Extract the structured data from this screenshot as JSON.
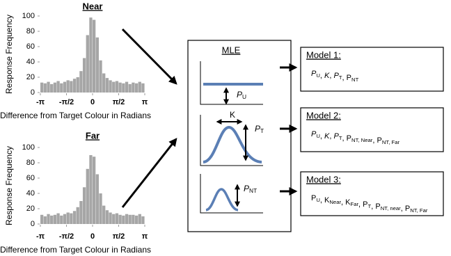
{
  "histograms": [
    {
      "type": "histogram",
      "title": "Near",
      "ylabel": "Response Frequency",
      "xlabel": "Difference from Target Colour in Radians",
      "color": "#a6a6a6",
      "ylim": [
        0,
        100
      ],
      "yticks": [
        0,
        20,
        40,
        60,
        80,
        100
      ],
      "xlim": [
        -3.142,
        3.142
      ],
      "xticks": [
        {
          "value": -3.142,
          "label": "-π"
        },
        {
          "value": -1.571,
          "label": "-π/2"
        },
        {
          "value": 0,
          "label": "0"
        },
        {
          "value": 1.571,
          "label": "π/2"
        },
        {
          "value": 3.142,
          "label": "π"
        }
      ],
      "bins": [
        -3.142,
        -2.945,
        -2.749,
        -2.553,
        -2.356,
        -2.16,
        -1.963,
        -1.767,
        -1.571,
        -1.374,
        -1.178,
        -0.982,
        -0.785,
        -0.589,
        -0.393,
        -0.196,
        0,
        0.196,
        0.393,
        0.589,
        0.785,
        0.982,
        1.178,
        1.374,
        1.571,
        1.767,
        1.963,
        2.16,
        2.356,
        2.553,
        2.749,
        2.945,
        3.142
      ],
      "counts": [
        13,
        12,
        14,
        11,
        13,
        15,
        12,
        14,
        16,
        15,
        18,
        20,
        28,
        45,
        75,
        98,
        95,
        72,
        42,
        25,
        19,
        16,
        14,
        15,
        13,
        12,
        14,
        11,
        13,
        12,
        14,
        12
      ]
    },
    {
      "type": "histogram",
      "title": "Far",
      "ylabel": "Response Frequency",
      "xlabel": "Difference from Target Colour in Radians",
      "color": "#a6a6a6",
      "ylim": [
        0,
        100
      ],
      "yticks": [
        0,
        20,
        40,
        60,
        80,
        100
      ],
      "xlim": [
        -3.142,
        3.142
      ],
      "xticks": [
        {
          "value": -3.142,
          "label": "-π"
        },
        {
          "value": -1.571,
          "label": "-π/2"
        },
        {
          "value": 0,
          "label": "0"
        },
        {
          "value": 1.571,
          "label": "π/2"
        },
        {
          "value": 3.142,
          "label": "π"
        }
      ],
      "bins": [
        -3.142,
        -2.945,
        -2.749,
        -2.553,
        -2.356,
        -2.16,
        -1.963,
        -1.767,
        -1.571,
        -1.374,
        -1.178,
        -0.982,
        -0.785,
        -0.589,
        -0.393,
        -0.196,
        0,
        0.196,
        0.393,
        0.589,
        0.785,
        0.982,
        1.178,
        1.374,
        1.571,
        1.767,
        1.963,
        2.16,
        2.356,
        2.553,
        2.749,
        2.945,
        3.142
      ],
      "counts": [
        12,
        10,
        13,
        11,
        12,
        14,
        11,
        13,
        15,
        14,
        17,
        22,
        30,
        48,
        72,
        90,
        88,
        65,
        40,
        24,
        18,
        15,
        13,
        14,
        12,
        11,
        13,
        12,
        12,
        11,
        13,
        10
      ]
    }
  ],
  "mle": {
    "title": "MLE",
    "labels": [
      {
        "text": "P",
        "sub": "U",
        "italic": true
      },
      {
        "text": "K",
        "italic": false
      },
      {
        "text": "P",
        "sub": "T",
        "italic": true
      },
      {
        "text": "P",
        "sub": "NT",
        "italic": true
      }
    ]
  },
  "models": [
    {
      "title": "Model 1:",
      "separator": ", ",
      "params": [
        {
          "text": "P",
          "sub": "U",
          "italic": true
        },
        {
          "text": "K",
          "italic": true
        },
        {
          "text": "P",
          "sub": "T",
          "italic": true
        },
        {
          "text": "P",
          "sub": "NT",
          "italic": false
        }
      ]
    },
    {
      "title": "Model 2:",
      "separator": ", ",
      "params": [
        {
          "text": "P",
          "sub": "U",
          "italic": true
        },
        {
          "text": "K",
          "italic": true
        },
        {
          "text": "P",
          "sub": "T",
          "italic": true
        },
        {
          "text": "P",
          "sub": "NT, Near",
          "italic": false
        },
        {
          "text": "P",
          "sub": "NT, Far",
          "italic": false
        }
      ]
    },
    {
      "title": "Model 3:",
      "separator": ", ",
      "params": [
        {
          "text": "P",
          "sub": "U",
          "italic": false
        },
        {
          "text": "K",
          "sub": "Near",
          "italic": false
        },
        {
          "text": "K",
          "sub": "Far",
          "italic": false
        },
        {
          "text": "P",
          "sub": "T",
          "italic": false
        },
        {
          "text": "P",
          "sub": "NT, near",
          "italic": false
        },
        {
          "text": "P",
          "sub": "NT, Far",
          "italic": false
        }
      ]
    }
  ]
}
